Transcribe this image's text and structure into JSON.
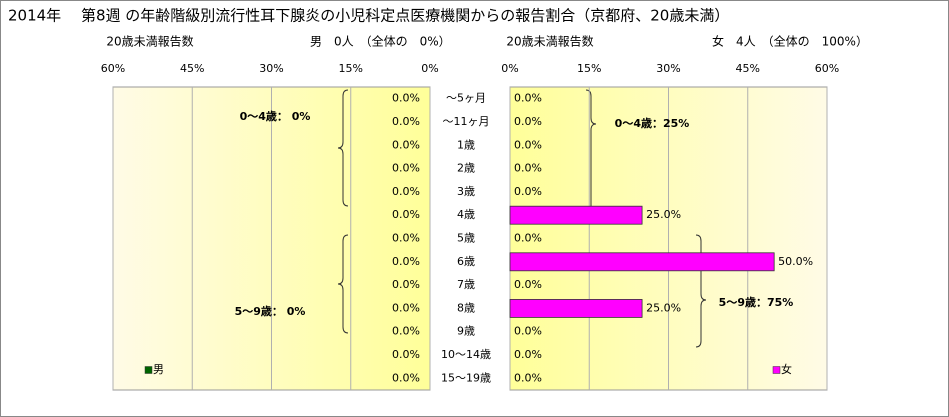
{
  "chart_data": {
    "type": "bar",
    "title": "2014年　 第8週 の年齢階級別流行性耳下腺炎の小児科定点医療機関からの報告割合（京都府、20歳未満）",
    "categories": [
      "～5ヶ月",
      "～11ヶ月",
      "1歳",
      "2歳",
      "3歳",
      "4歳",
      "5歳",
      "6歳",
      "7歳",
      "8歳",
      "9歳",
      "10～14歳",
      "15～19歳"
    ],
    "xlim": [
      0,
      60
    ],
    "xticks": [
      {
        "value": 0,
        "label": "0%"
      },
      {
        "value": 15,
        "label": "15%"
      },
      {
        "value": 30,
        "label": "30%"
      },
      {
        "value": 45,
        "label": "45%"
      },
      {
        "value": 60,
        "label": "60%"
      }
    ],
    "grid": true,
    "series": [
      {
        "name": "男",
        "color": "#006400",
        "count_label": "20歳未満報告数",
        "summary": "男　0人　（全体の　0%）",
        "values": [
          0,
          0,
          0,
          0,
          0,
          0,
          0,
          0,
          0,
          0,
          0,
          0,
          0
        ],
        "value_labels": [
          "0.0%",
          "0.0%",
          "0.0%",
          "0.0%",
          "0.0%",
          "0.0%",
          "0.0%",
          "0.0%",
          "0.0%",
          "0.0%",
          "0.0%",
          "0.0%",
          "0.0%"
        ],
        "annotations": [
          "0～4歳： 0%",
          "5～9歳： 0%"
        ]
      },
      {
        "name": "女",
        "color": "#ff00ff",
        "count_label": "20歳未満報告数",
        "summary": "女　4人　（全体の　100%）",
        "values": [
          0,
          0,
          0,
          0,
          0,
          25,
          0,
          50,
          0,
          25,
          0,
          0,
          0
        ],
        "value_labels": [
          "0.0%",
          "0.0%",
          "0.0%",
          "0.0%",
          "0.0%",
          "25.0%",
          "0.0%",
          "50.0%",
          "0.0%",
          "25.0%",
          "0.0%",
          "0.0%",
          "0.0%"
        ],
        "annotations": [
          "0～4歳：25%",
          "5～9歳：75%"
        ]
      }
    ]
  }
}
